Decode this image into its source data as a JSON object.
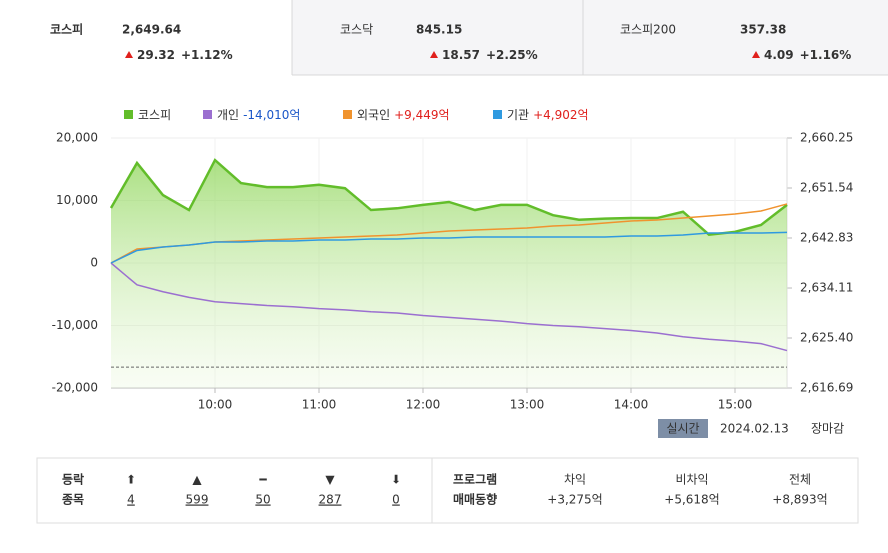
{
  "tabs": [
    {
      "name": "코스피",
      "value": "2,649.64",
      "change": 29.32,
      "rate": "+1.12%"
    },
    {
      "name": "코스닥",
      "value": "845.15",
      "change": 18.57,
      "rate": "+2.25%"
    },
    {
      "name": "코스피200",
      "value": "357.38",
      "change": 4.09,
      "rate": "+1.16%"
    }
  ],
  "chart_data": {
    "type": "line",
    "grid": true,
    "x": [
      9,
      9.25,
      9.5,
      9.75,
      10,
      10.25,
      10.5,
      10.75,
      11,
      11.25,
      11.5,
      11.75,
      12,
      12.25,
      12.5,
      12.75,
      13,
      13.25,
      13.5,
      13.75,
      14,
      14.25,
      14.5,
      14.75,
      15,
      15.25,
      15.5
    ],
    "xlim": [
      9,
      15.5
    ],
    "xticks": [
      {
        "value": 10,
        "label": "10:00"
      },
      {
        "value": 11,
        "label": "11:00"
      },
      {
        "value": 12,
        "label": "12:00"
      },
      {
        "value": 13,
        "label": "13:00"
      },
      {
        "value": 14,
        "label": "14:00"
      },
      {
        "value": 15,
        "label": "15:00"
      }
    ],
    "ylim": [
      -20000,
      20000
    ],
    "yticks": [
      {
        "value": -20000,
        "label": "-20,000"
      },
      {
        "value": -10000,
        "label": "-10,000"
      },
      0,
      {
        "value": 10000,
        "label": "10,000"
      },
      {
        "value": 20000,
        "label": "20,000"
      }
    ],
    "y2lim": [
      2616.69,
      2660.25
    ],
    "y2ticks": [
      {
        "value": 2616.69,
        "label": "2,616.69"
      },
      {
        "value": 2625.4,
        "label": "2,625.40"
      },
      {
        "value": 2634.11,
        "label": "2,634.11"
      },
      {
        "value": 2642.83,
        "label": "2,642.83"
      },
      {
        "value": 2651.54,
        "label": "2,651.54"
      },
      {
        "value": 2660.25,
        "label": "2,660.25"
      }
    ],
    "baseline": 2620.32,
    "series": [
      {
        "name": "코스피",
        "color": "#62bd2a",
        "axis": "y2",
        "values": [
          2648.05,
          2655.9,
          2650.3,
          2647.7,
          2656.4,
          2652.4,
          2651.7,
          2651.7,
          2652.1,
          2651.5,
          2647.7,
          2648.0,
          2648.6,
          2649.1,
          2647.7,
          2648.6,
          2648.6,
          2646.8,
          2646.0,
          2646.2,
          2646.3,
          2646.3,
          2647.4,
          2643.4,
          2643.9,
          2645.1,
          2648.6
        ]
      },
      {
        "name": "개인",
        "legend_value": "-14,010억",
        "color": "#9b6fd0",
        "values": [
          0,
          -3500,
          -4600,
          -5500,
          -6200,
          -6500,
          -6800,
          -7000,
          -7300,
          -7500,
          -7800,
          -8000,
          -8400,
          -8700,
          -9000,
          -9300,
          -9700,
          -10000,
          -10200,
          -10500,
          -10800,
          -11200,
          -11800,
          -12200,
          -12500,
          -12900,
          -14010
        ]
      },
      {
        "name": "외국인",
        "legend_value": "+9,449억",
        "color": "#f0932e",
        "values": [
          0,
          2240,
          2560,
          2880,
          3360,
          3520,
          3680,
          3840,
          4000,
          4160,
          4320,
          4480,
          4800,
          5120,
          5280,
          5440,
          5600,
          5920,
          6080,
          6400,
          6720,
          6880,
          7200,
          7520,
          7840,
          8320,
          9449
        ]
      },
      {
        "name": "기관",
        "legend_value": "+4,902억",
        "color": "#2f9ae0",
        "values": [
          0,
          2000,
          2560,
          2880,
          3360,
          3360,
          3520,
          3520,
          3680,
          3680,
          3840,
          3840,
          4000,
          4000,
          4160,
          4160,
          4160,
          4160,
          4160,
          4160,
          4320,
          4320,
          4480,
          4800,
          4800,
          4800,
          4902
        ]
      }
    ]
  },
  "status": {
    "badge": "실시간",
    "date": "2024.02.13",
    "state": "장마감"
  },
  "breadth": {
    "label": [
      "등락",
      "종목"
    ],
    "items": [
      {
        "icon": "⬆",
        "value": 4
      },
      {
        "icon": "▲",
        "value": 599
      },
      {
        "icon": "━",
        "value": 50
      },
      {
        "icon": "▼",
        "value": 287
      },
      {
        "icon": "⬇",
        "value": 0
      }
    ]
  },
  "program": {
    "label": [
      "프로그램",
      "매매동향"
    ],
    "columns": [
      {
        "name": "차익",
        "value": "+3,275억"
      },
      {
        "name": "비차익",
        "value": "+5,618억"
      },
      {
        "name": "전체",
        "value": "+8,893억"
      }
    ]
  }
}
